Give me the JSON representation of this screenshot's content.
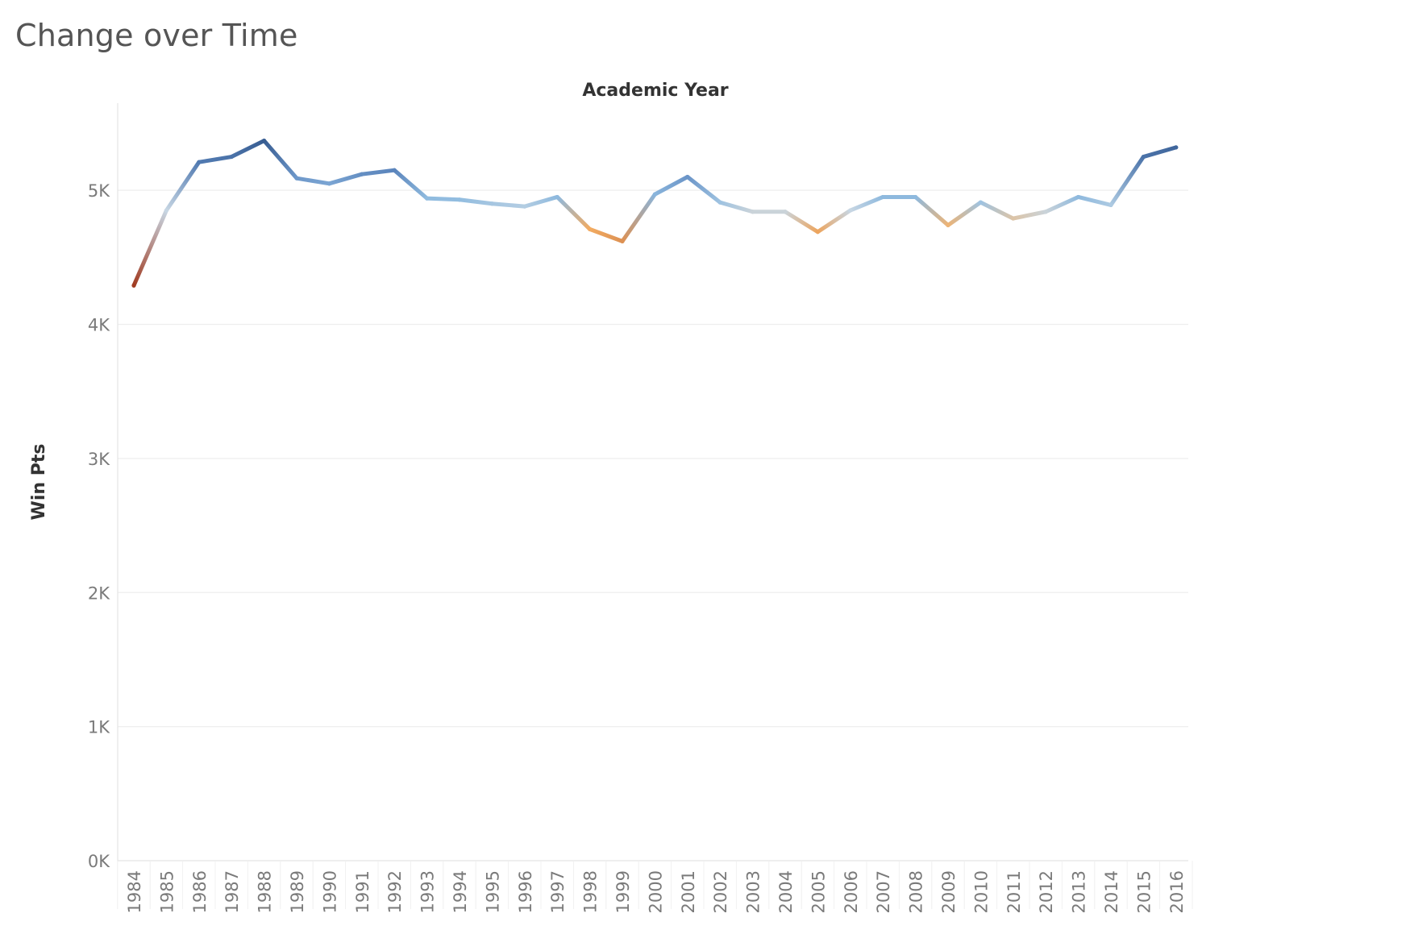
{
  "chart_data": {
    "type": "line",
    "title": "Change over Time",
    "xlabel": "Academic Year",
    "ylabel": "Win Pts",
    "x": [
      "1984",
      "1985",
      "1986",
      "1987",
      "1988",
      "1989",
      "1990",
      "1991",
      "1992",
      "1993",
      "1994",
      "1995",
      "1996",
      "1997",
      "1998",
      "1999",
      "2000",
      "2001",
      "2002",
      "2003",
      "2004",
      "2005",
      "2006",
      "2007",
      "2008",
      "2009",
      "2010",
      "2011",
      "2012",
      "2013",
      "2014",
      "2015",
      "2016"
    ],
    "series": [
      {
        "values": [
          4290,
          4850,
          5210,
          5250,
          5370,
          5090,
          5050,
          5120,
          5150,
          4940,
          4930,
          4900,
          4880,
          4950,
          4710,
          4620,
          4970,
          5100,
          4910,
          4840,
          4840,
          4690,
          4850,
          4950,
          4950,
          4740,
          4910,
          4790,
          4840,
          4950,
          4890,
          5250,
          5320
        ]
      }
    ],
    "ylim": [
      0,
      5650
    ],
    "yticks": [
      0,
      1000,
      2000,
      3000,
      4000,
      5000
    ],
    "ytick_labels": [
      "0K",
      "1K",
      "2K",
      "3K",
      "4K",
      "5K"
    ],
    "grid": true,
    "color_scale": [
      "#a13c22",
      "#dd9153",
      "#f4ae62",
      "#c7d6e3",
      "#92bde0",
      "#7ba5d3",
      "#5b85bc",
      "#385d92"
    ]
  }
}
